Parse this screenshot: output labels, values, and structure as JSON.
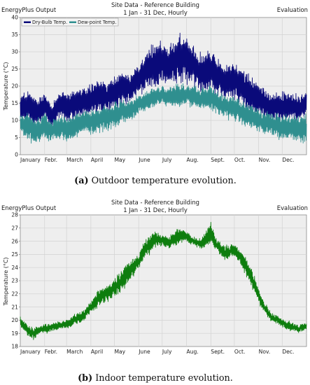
{
  "chart_data": [
    {
      "type": "line",
      "header": {
        "left": "EnergyPlus Output",
        "title_line1": "Site Data - Reference Building",
        "title_line2": "1 Jan - 31 Dec, Hourly",
        "right": "Evaluation"
      },
      "ylabel": "Temperature (°C)",
      "ylim": [
        0,
        40
      ],
      "yticks": [
        0,
        5,
        10,
        15,
        20,
        25,
        30,
        35,
        40
      ],
      "months": [
        "January",
        "Febr.",
        "March",
        "April",
        "May",
        "June",
        "July",
        "Aug.",
        "Sept.",
        "Oct.",
        "Nov.",
        "Dec."
      ],
      "caption": {
        "label": "(a)",
        "text": "Outdoor temperature evolution."
      },
      "grid": true,
      "legend_position": "top-left",
      "series": [
        {
          "name": "Dry-Bulb Temp.",
          "color": "#0a0a7a",
          "envelope_day_of_year": [
            0,
            10,
            20,
            31,
            40,
            50,
            59,
            70,
            80,
            90,
            100,
            110,
            120,
            130,
            140,
            151,
            160,
            170,
            181,
            190,
            200,
            212,
            220,
            230,
            243,
            250,
            260,
            273,
            280,
            290,
            304,
            310,
            320,
            334,
            345,
            355,
            364
          ],
          "low": [
            9,
            8,
            7,
            9,
            7,
            9,
            8,
            9,
            10,
            10,
            11,
            11,
            12,
            13,
            14,
            16,
            17,
            18,
            19,
            18,
            19,
            19,
            19,
            17,
            17,
            16,
            15,
            14,
            13,
            11,
            10,
            9,
            9,
            8,
            9,
            9,
            10
          ],
          "high": [
            18,
            20,
            17,
            19,
            16,
            20,
            19,
            21,
            20,
            22,
            23,
            22,
            24,
            25,
            24,
            28,
            31,
            34,
            35,
            32,
            38,
            36,
            33,
            31,
            33,
            30,
            28,
            29,
            27,
            25,
            22,
            21,
            19,
            20,
            19,
            18,
            19
          ]
        },
        {
          "name": "Dew-point Temp.",
          "color": "#2f8f8f",
          "envelope_day_of_year": [
            0,
            10,
            20,
            31,
            40,
            50,
            59,
            70,
            80,
            90,
            100,
            110,
            120,
            130,
            140,
            151,
            160,
            170,
            181,
            190,
            200,
            212,
            220,
            230,
            243,
            250,
            260,
            273,
            280,
            290,
            304,
            310,
            320,
            334,
            345,
            355,
            364
          ],
          "low": [
            6,
            3,
            2,
            4,
            3,
            4,
            3,
            4,
            5,
            5,
            6,
            6,
            7,
            8,
            9,
            11,
            12,
            13,
            14,
            13,
            13,
            14,
            13,
            12,
            12,
            11,
            10,
            9,
            8,
            7,
            6,
            5,
            5,
            3,
            4,
            3,
            2
          ],
          "high": [
            12,
            13,
            11,
            13,
            11,
            12,
            12,
            13,
            13,
            14,
            15,
            15,
            16,
            17,
            17,
            18,
            19,
            20,
            21,
            20,
            22,
            21,
            21,
            20,
            21,
            19,
            18,
            18,
            17,
            16,
            14,
            13,
            13,
            13,
            12,
            12,
            13
          ]
        }
      ]
    },
    {
      "type": "line",
      "header": {
        "left": "EnergyPlus Output",
        "title_line1": "Site Data - Reference Building",
        "title_line2": "1 Jan - 31 Dec, Hourly",
        "right": "Evaluation"
      },
      "ylabel": "Temperature (°C)",
      "ylim": [
        18,
        28
      ],
      "yticks": [
        18,
        19,
        20,
        21,
        22,
        23,
        24,
        25,
        26,
        27,
        28
      ],
      "months": [
        "January",
        "Febr.",
        "March",
        "April",
        "May",
        "June",
        "July",
        "Aug.",
        "Sept.",
        "Oct.",
        "Nov.",
        "Dec."
      ],
      "caption": {
        "label": "(b)",
        "text": "Indoor temperature evolution."
      },
      "grid": true,
      "series": [
        {
          "color": "#0e7d0e",
          "envelope_day_of_year": [
            0,
            8,
            15,
            25,
            35,
            45,
            59,
            70,
            80,
            90,
            100,
            110,
            120,
            130,
            140,
            151,
            160,
            170,
            181,
            190,
            200,
            212,
            220,
            230,
            243,
            250,
            260,
            273,
            280,
            290,
            300,
            310,
            320,
            334,
            345,
            355,
            364
          ],
          "low": [
            19.4,
            18.8,
            18.4,
            18.9,
            19.0,
            19.2,
            19.3,
            19.6,
            19.8,
            20.4,
            21.0,
            21.3,
            21.5,
            22.1,
            22.9,
            23.8,
            24.6,
            25.2,
            25.6,
            25.3,
            25.7,
            25.9,
            25.6,
            25.4,
            25.6,
            25.1,
            24.5,
            24.7,
            24.2,
            23.0,
            21.8,
            20.5,
            19.8,
            19.4,
            19.1,
            19.0,
            19.2
          ],
          "high": [
            20.3,
            19.8,
            19.5,
            19.6,
            19.8,
            19.9,
            20.1,
            20.5,
            20.8,
            21.6,
            22.4,
            22.8,
            23.3,
            24.0,
            24.6,
            25.2,
            26.2,
            26.9,
            26.6,
            26.4,
            27.2,
            26.8,
            26.4,
            26.2,
            27.6,
            26.3,
            25.8,
            25.8,
            25.4,
            24.7,
            23.2,
            21.6,
            20.6,
            20.2,
            19.9,
            19.7,
            19.9
          ]
        }
      ]
    }
  ]
}
